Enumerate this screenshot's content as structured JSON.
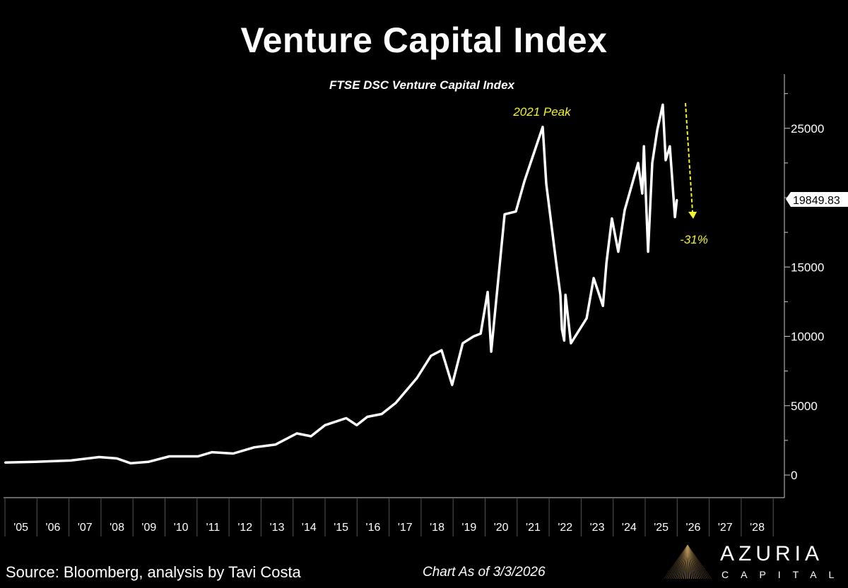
{
  "title": "Venture Capital Index",
  "footer": {
    "source": "Source: Bloomberg, analysis by Tavi Costa",
    "as_of": "Chart As of 3/3/2026"
  },
  "logo": {
    "name": "AZURIA",
    "sub": "CAPITAL"
  },
  "colors": {
    "background": "#000000",
    "line": "#ffffff",
    "annotation": "#f2f230",
    "logo_gold": "#b8955a"
  },
  "chart_data": {
    "type": "line",
    "title": "FTSE DSC Venture Capital Index",
    "xlabel": "",
    "ylabel": "",
    "xlim": [
      2005,
      2029
    ],
    "ylim": [
      0,
      28000
    ],
    "y_axis_position": "right",
    "grid": false,
    "x_tick_labels": [
      "'05",
      "'06",
      "'07",
      "'08",
      "'09",
      "'10",
      "'11",
      "'12",
      "'13",
      "'14",
      "'15",
      "'16",
      "'17",
      "'18",
      "'19",
      "'20",
      "'21",
      "'22",
      "'23",
      "'24",
      "'25",
      "'26",
      "'27",
      "'28"
    ],
    "y_ticks": [
      0,
      5000,
      10000,
      15000,
      20000,
      25000
    ],
    "y_tick_labels": [
      "0",
      "5000",
      "10000",
      "15000",
      "",
      "25000"
    ],
    "last_value_label": "19849.83",
    "last_value": 19849.83,
    "annotations": [
      {
        "text": "2021 Peak",
        "x": 2021.8,
        "y": 25100
      },
      {
        "text": "-31%",
        "x": 2026.1,
        "y": 17500
      }
    ],
    "series": [
      {
        "x": [
          2005.0,
          2005.95,
          2007.05,
          2007.94,
          2008.49,
          2008.93,
          2009.48,
          2010.14,
          2011.03,
          2011.47,
          2012.13,
          2012.79,
          2013.45,
          2014.12,
          2014.56,
          2015.0,
          2015.66,
          2015.99,
          2016.32,
          2016.77,
          2017.21,
          2017.87,
          2018.31,
          2018.64,
          2018.97,
          2019.3,
          2019.64,
          2019.86,
          2020.08,
          2020.19,
          2020.61,
          2020.96,
          2021.23,
          2021.8,
          2021.91,
          2022.22,
          2022.35,
          2022.4,
          2022.47,
          2022.51,
          2022.68,
          2023.17,
          2023.39,
          2023.68,
          2023.79,
          2023.96,
          2024.16,
          2024.36,
          2024.78,
          2024.91,
          2024.96,
          2025.09,
          2025.22,
          2025.38,
          2025.55,
          2025.64,
          2025.77,
          2025.93,
          2025.99
        ],
        "y": [
          900,
          950,
          1050,
          1300,
          1200,
          850,
          950,
          1350,
          1350,
          1650,
          1550,
          2000,
          2200,
          3000,
          2800,
          3600,
          4100,
          3600,
          4200,
          4400,
          5200,
          7000,
          8600,
          9000,
          6500,
          9500,
          10000,
          10200,
          13200,
          8900,
          18800,
          19000,
          21200,
          25100,
          21000,
          15300,
          13000,
          10500,
          9700,
          13000,
          9500,
          11300,
          14200,
          12200,
          15300,
          18500,
          16100,
          19100,
          22500,
          20300,
          23700,
          16100,
          22500,
          24900,
          26700,
          22700,
          23700,
          18600,
          19850
        ]
      }
    ]
  }
}
